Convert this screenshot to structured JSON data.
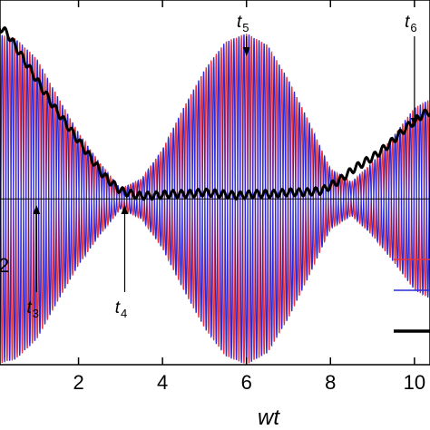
{
  "chart_data": {
    "type": "line",
    "title": "",
    "xlabel": "wt",
    "ylabel": "",
    "xlim": [
      0,
      10.5
    ],
    "ylim": [
      -1.0,
      1.2
    ],
    "x_ticks": [
      2,
      4,
      6,
      8,
      10
    ],
    "x_tick_labels": [
      "2",
      "4",
      "6",
      "8",
      "10"
    ],
    "baseline_y": 0,
    "grid": false,
    "legend_placement": "right",
    "colors": {
      "red": "#e8323c",
      "blue": "#2a2ad8",
      "black": "#000000"
    },
    "series": [
      {
        "color": "#e8323c",
        "envelope_x": [
          0,
          0.5,
          1,
          1.5,
          2,
          2.5,
          3,
          3.5,
          4,
          4.5,
          5,
          5.5,
          6,
          6.5,
          7,
          7.5,
          8,
          8.5,
          9,
          9.5,
          10,
          10.5
        ],
        "envelope_amp": [
          1.0,
          0.97,
          0.85,
          0.62,
          0.4,
          0.22,
          0.06,
          0.12,
          0.3,
          0.55,
          0.78,
          0.95,
          1.0,
          0.93,
          0.72,
          0.46,
          0.18,
          0.1,
          0.22,
          0.38,
          0.55,
          0.62
        ],
        "oscillation_period": 0.12
      },
      {
        "color": "#2a2ad8",
        "envelope_x": [
          0,
          0.5,
          1,
          1.5,
          2,
          2.5,
          3,
          3.5,
          4,
          4.5,
          5,
          5.5,
          6,
          6.5,
          7,
          7.5,
          8,
          8.5,
          9,
          9.5,
          10,
          10.5
        ],
        "envelope_amp": [
          1.0,
          0.97,
          0.85,
          0.62,
          0.4,
          0.22,
          0.06,
          0.12,
          0.3,
          0.55,
          0.78,
          0.95,
          1.0,
          0.93,
          0.72,
          0.46,
          0.18,
          0.1,
          0.22,
          0.38,
          0.55,
          0.62
        ],
        "oscillation_period": 0.12
      },
      {
        "color": "#000000",
        "x": [
          0,
          0.3,
          0.6,
          1.0,
          1.4,
          1.8,
          2.2,
          2.6,
          3.0,
          3.4,
          3.8,
          4.2,
          4.6,
          5.0,
          5.4,
          5.8,
          6.2,
          6.6,
          7.0,
          7.4,
          7.8,
          8.2,
          8.6,
          9.0,
          9.4,
          9.8,
          10.2,
          10.5
        ],
        "y": [
          1.06,
          1.0,
          0.88,
          0.72,
          0.56,
          0.42,
          0.28,
          0.14,
          0.05,
          0.02,
          0.02,
          0.03,
          0.03,
          0.04,
          0.03,
          0.02,
          0.03,
          0.03,
          0.04,
          0.04,
          0.05,
          0.11,
          0.19,
          0.25,
          0.33,
          0.43,
          0.51,
          0.54
        ]
      }
    ],
    "annotations": [
      {
        "label": "t",
        "sub": "3",
        "x": 1.0
      },
      {
        "label": "t",
        "sub": "4",
        "x": 3.1
      },
      {
        "label": "t",
        "sub": "5",
        "x": 6.0
      },
      {
        "label": "t",
        "sub": "6",
        "x": 10.0
      }
    ],
    "edge_fragment": "2"
  }
}
